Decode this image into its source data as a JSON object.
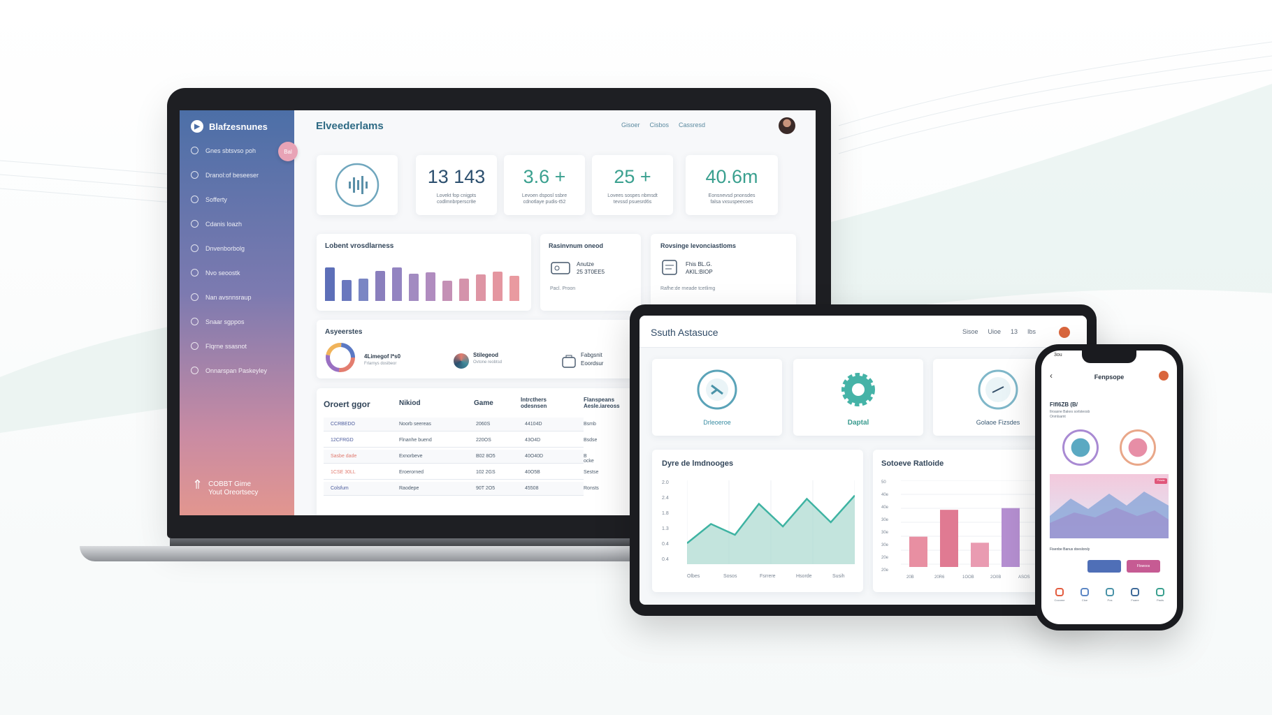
{
  "laptop": {
    "brand": "Blafzesnunes",
    "sidebar_items": [
      "Gnes sbtsvso poh",
      "Dranol:of beseeser",
      "Sofferty",
      "Cdanis loazh",
      "Dnvenborbolg",
      "Nvo seoostk",
      "Nan avsnnsraup",
      "Snaar sgppos",
      "Flqrne ssasnot",
      "Onnarspan Paskeyley"
    ],
    "sidebar_badge": "Bal",
    "sidebar_footer": [
      "COBBT Gime",
      "Yout Oreortsecy"
    ],
    "title": "Elveederlams",
    "nav": [
      "Gisoer",
      "Cisbos",
      "Cassresd"
    ],
    "kpis": [
      {
        "value": "13 143",
        "sub": [
          "Lovekt fop cnigpts",
          "codlmnbrperscr8e"
        ],
        "color": "#2c4f6e"
      },
      {
        "value": "3.6 +",
        "sub": [
          "Levoen dsposl ssbre",
          "cdnotlaye pudis-t52"
        ],
        "color": "#3aa08f"
      },
      {
        "value": "25 +",
        "sub": [
          "Lovees sospes nbmsdt",
          "tevssd psuesrd6s"
        ],
        "color": "#3aa08f"
      },
      {
        "value": "40.6m",
        "sub": [
          "Eonsnevsd pnonsdes",
          "falsa vxsuspeecoes"
        ],
        "color": "#3aa08f"
      }
    ],
    "bar_card_title": "Lobent vrosdlarness",
    "bars": [
      0.82,
      0.52,
      0.55,
      0.75,
      0.82,
      0.68,
      0.7,
      0.5,
      0.55,
      0.65,
      0.72,
      0.62
    ],
    "bar_colors": [
      "#5d6fb8",
      "#6a78be",
      "#7a86c4",
      "#8a7fbd",
      "#9384c1",
      "#a28bc1",
      "#b08cbf",
      "#c490b5",
      "#d493ab",
      "#de95a4",
      "#e496a0",
      "#e99aa0"
    ],
    "res_title": "Rasinvnum oneod",
    "res_line1": "Anutze",
    "res_line2": "25 3T0EE5",
    "res_foot": "Pacl. Proon",
    "rev_title": "Rovsinge levonciastloms",
    "rev_line1": "Fhis BL.G.",
    "rev_line2": "AKIL:BIOP",
    "rev_foot": "Rafhe:de rneade tcetlimg",
    "activity_title": "Asyeerstes",
    "activity_items": [
      {
        "title": "4Limegof I*s0",
        "sub": "Frlarnys dosibeor"
      },
      {
        "title": "Stilegeod",
        "sub": "Ovtone reobtsd"
      },
      {
        "title": "Fabgsnit",
        "sub": "Eoordsur"
      }
    ],
    "table_headers": [
      "Oroert ggor",
      "Nikiod",
      "Game",
      "Intrcthers odesnsen",
      "Flanspeans Aesle.iareoss"
    ],
    "table_rows": [
      [
        "CCRBEDO",
        "Noorb seereas",
        "2060S",
        "44104D",
        "Bsmb"
      ],
      [
        "12CFRGD",
        "Flnanhe buend",
        "220OS",
        "43O4D",
        "Bsdse"
      ],
      [
        "Sasbe dade",
        "Exnorbeve",
        "B02 8O5",
        "40O40D",
        "B ocke"
      ],
      [
        "1CSE 30LL",
        "Eroerorned",
        "102 2GS",
        "40O5B",
        "Sestse"
      ],
      [
        "Colsfum",
        "Raodepe",
        "90T 2O5",
        "45508",
        "Ronsts"
      ]
    ]
  },
  "tablet": {
    "title": "Ssuth Astasuce",
    "nav": [
      "Sisoe",
      "Uioe",
      "13",
      "Ibs"
    ],
    "tiles": [
      "Drleoeroe",
      "Daptal",
      "Golaoe Fizsdes"
    ],
    "line_chart_title": "Dyre de lmdnooges",
    "line_y_ticks": [
      "2.0",
      "2.4",
      "1.8",
      "1.3",
      "0.4",
      "0.4"
    ],
    "line_x_ticks": [
      "Olbes",
      "Sosos",
      "Fsrrere",
      "Hsorde",
      "Susih"
    ],
    "line_values": [
      0.25,
      0.48,
      0.35,
      0.72,
      0.45,
      0.78,
      0.5,
      0.82
    ],
    "bar_chart_title": "Sotoeve Ratloide",
    "bar_y_ticks": [
      "50",
      "40e",
      "40e",
      "30e",
      "30e",
      "30e",
      "20e",
      "20e"
    ],
    "bar_x_ticks": [
      "20B",
      "20R6",
      "1OOB",
      "2O0B",
      "ASOS"
    ],
    "bar_values": [
      0.35,
      0.66,
      0.28,
      0.68
    ],
    "bar_colors": [
      "#e88fa2",
      "#e07a92",
      "#e99bb1",
      "#b58fd1"
    ]
  },
  "phone": {
    "time": "3ou",
    "title": "Fenpsope",
    "heading": "Flfl6ZB (B/",
    "sub_lines": [
      "Ilroasne Bakes sorlsteosb",
      "Onmlsamt"
    ],
    "chip": "Posas",
    "caption": "Fisenbe Banus doeslorsly",
    "btn_primary": "",
    "btn_secondary": "Flowoos",
    "bottom_items": [
      "Cocome",
      "Cloe",
      "Pos",
      "Foaee",
      "Paols"
    ]
  }
}
